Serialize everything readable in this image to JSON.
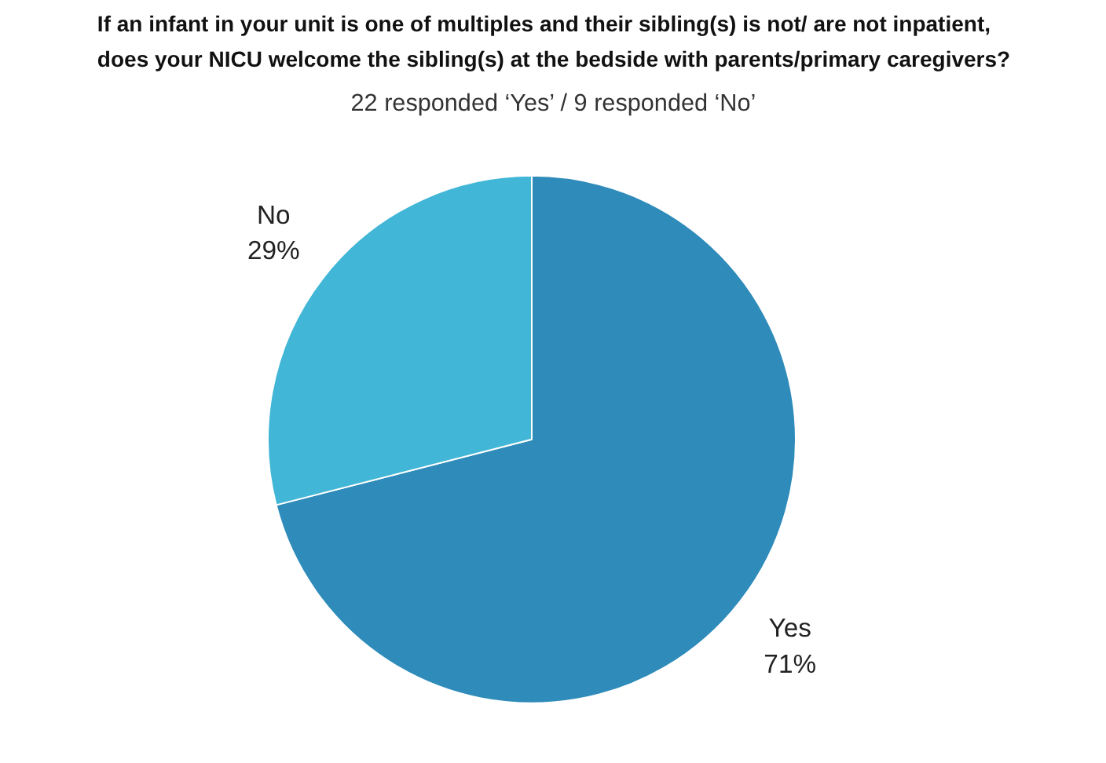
{
  "chart_data": {
    "type": "pie",
    "title": "If an infant in your unit is one of multiples and their sibling(s) is not/ are not inpatient,\ndoes your NICU welcome the sibling(s) at the bedside with parents/primary caregivers?",
    "subtitle": "22 responded ‘Yes’ / 9 responded ‘No’",
    "categories": [
      "Yes",
      "No"
    ],
    "values": [
      71,
      29
    ],
    "value_labels": [
      "71%",
      "29%"
    ],
    "colors": [
      "#2e8bba",
      "#41b6d6"
    ]
  }
}
